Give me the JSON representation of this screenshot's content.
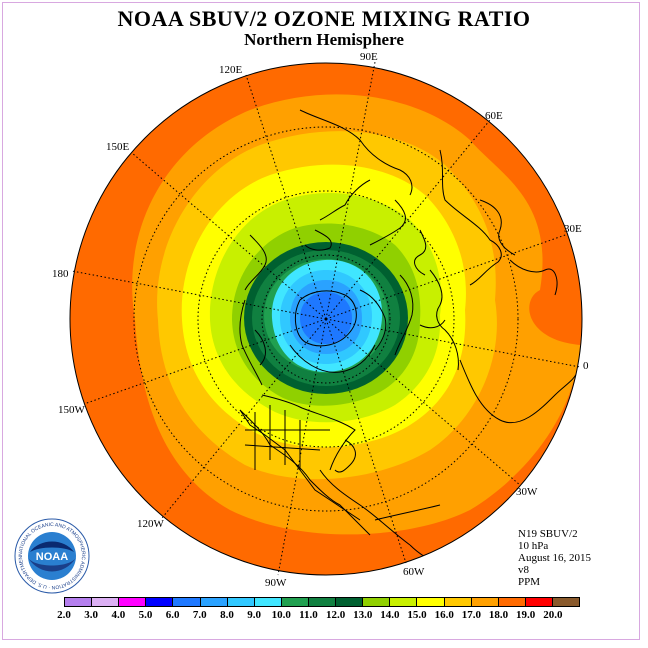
{
  "title": "NOAA SBUV/2 OZONE MIXING RATIO",
  "subtitle": "Northern Hemisphere",
  "longitude_labels": [
    {
      "id": "90E",
      "text": "90E"
    },
    {
      "id": "60E",
      "text": "60E"
    },
    {
      "id": "30E",
      "text": "30E"
    },
    {
      "id": "0",
      "text": "0"
    },
    {
      "id": "30W",
      "text": "30W"
    },
    {
      "id": "60W",
      "text": "60W"
    },
    {
      "id": "90W",
      "text": "90W"
    },
    {
      "id": "120W",
      "text": "120W"
    },
    {
      "id": "150W",
      "text": "150W"
    },
    {
      "id": "180",
      "text": "180"
    },
    {
      "id": "150E",
      "text": "150E"
    },
    {
      "id": "120E",
      "text": "120E"
    }
  ],
  "info": {
    "instrument": "N19 SBUV/2",
    "level": "10 hPa",
    "date": "August 16, 2015",
    "version": "v8",
    "units": "PPM"
  },
  "logo_text": "NOAA",
  "logo_ring_text": "NATIONAL OCEANIC AND ATMOSPHERIC ADMINISTRATION · U.S. DEPARTMENT OF COMMERCE",
  "colorbar": {
    "ticks": [
      "2.0",
      "3.0",
      "4.0",
      "5.0",
      "6.0",
      "7.0",
      "8.0",
      "9.0",
      "10.0",
      "11.0",
      "12.0",
      "13.0",
      "14.0",
      "15.0",
      "16.0",
      "17.0",
      "18.0",
      "19.0",
      "20.0"
    ],
    "colors": [
      "#b57fee",
      "#dcb0f4",
      "#ff00ff",
      "#0000ff",
      "#1e78ff",
      "#2aa2ff",
      "#30c8ff",
      "#40e6ff",
      "#20a050",
      "#108040",
      "#006030",
      "#90d000",
      "#c8f000",
      "#ffff00",
      "#ffc800",
      "#ffa000",
      "#ff6a00",
      "#ff0000",
      "#8a5a2c"
    ]
  },
  "map_fill_colors": {
    "outer": "#ff6a00",
    "ring_17_18": "#ffa000",
    "ring_16_17": "#ffc800",
    "ring_15_16": "#ffff00",
    "ring_14_15": "#c8f000",
    "ring_13_14": "#90d000",
    "ring_12_13": "#006030",
    "ring_11_12": "#108040",
    "ring_10_11": "#20a050",
    "center_9": "#40e6ff",
    "center_8": "#30c8ff",
    "center_7": "#2aa2ff",
    "center_6": "#1e78ff"
  }
}
